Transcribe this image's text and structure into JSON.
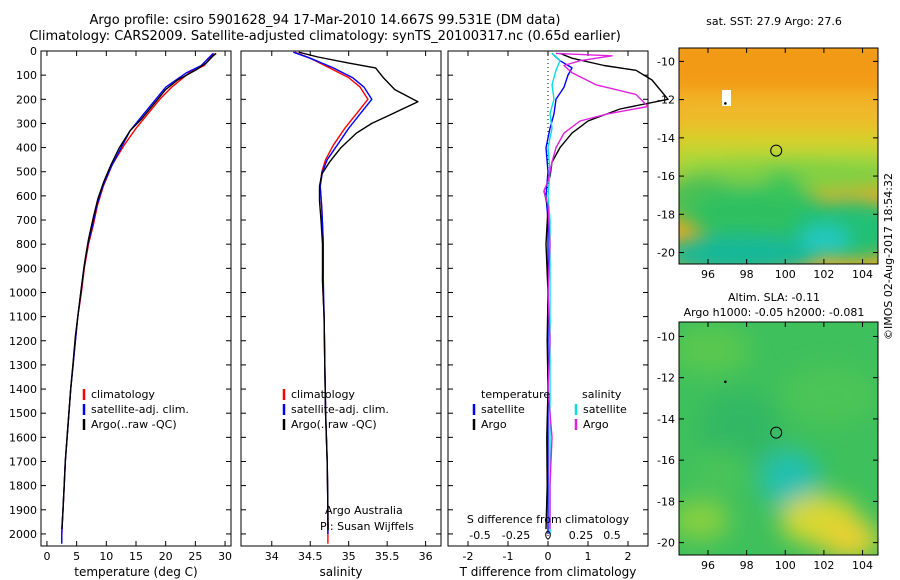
{
  "header": {
    "title_line1": "Argo profile: csiro 5901628_94 17-Mar-2010 14.667S 99.531E (DM data)",
    "title_line2": "Climatology: CARS2009. Satellite-adjusted climatology: synTS_20100317.nc (0.65d earlier)"
  },
  "colors": {
    "climatology": "#ff0000",
    "satellite": "#0000ff",
    "argo": "#000000",
    "t_satellite": "#0000ff",
    "s_satellite": "#00e0e0",
    "s_argo": "#e020e0"
  },
  "chart_data": [
    {
      "type": "line",
      "panel": "temperature",
      "xlabel": "temperature (deg C)",
      "xlim": [
        -1,
        31
      ],
      "ylim": [
        2050,
        0
      ],
      "xticks": [
        0,
        5,
        10,
        15,
        20,
        25,
        30
      ],
      "yticks": [
        0,
        100,
        200,
        300,
        400,
        500,
        600,
        700,
        800,
        900,
        1000,
        1100,
        1200,
        1300,
        1400,
        1500,
        1600,
        1700,
        1800,
        1900,
        2000
      ],
      "legend": [
        "climatology",
        "satellite-adj. clim.",
        "Argo(..raw -QC)"
      ],
      "series": [
        {
          "name": "climatology",
          "color": "#ff0000",
          "points": [
            [
              28.2,
              10
            ],
            [
              27.8,
              20
            ],
            [
              26.5,
              60
            ],
            [
              24.0,
              90
            ],
            [
              21.0,
              150
            ],
            [
              19.0,
              200
            ],
            [
              17.0,
              260
            ],
            [
              15.0,
              320
            ],
            [
              13.0,
              390
            ],
            [
              11.0,
              470
            ],
            [
              9.5,
              560
            ],
            [
              8.5,
              640
            ],
            [
              7.8,
              720
            ],
            [
              7.0,
              800
            ],
            [
              6.3,
              900
            ],
            [
              5.8,
              1000
            ],
            [
              5.2,
              1100
            ],
            [
              4.8,
              1200
            ],
            [
              4.4,
              1300
            ],
            [
              4.0,
              1400
            ],
            [
              3.7,
              1500
            ],
            [
              3.4,
              1600
            ],
            [
              3.1,
              1700
            ],
            [
              2.9,
              1800
            ],
            [
              2.7,
              1900
            ],
            [
              2.5,
              2000
            ],
            [
              2.5,
              2040
            ]
          ]
        },
        {
          "name": "satellite-adj. clim.",
          "color": "#0000ff",
          "points": [
            [
              28.0,
              10
            ],
            [
              27.6,
              20
            ],
            [
              26.0,
              60
            ],
            [
              23.5,
              90
            ],
            [
              20.0,
              150
            ],
            [
              18.0,
              210
            ],
            [
              16.0,
              270
            ],
            [
              14.0,
              330
            ],
            [
              12.5,
              400
            ],
            [
              10.8,
              480
            ],
            [
              9.4,
              560
            ],
            [
              8.4,
              640
            ],
            [
              7.7,
              720
            ],
            [
              6.9,
              800
            ],
            [
              6.2,
              900
            ],
            [
              5.7,
              1000
            ],
            [
              5.2,
              1100
            ],
            [
              4.8,
              1200
            ],
            [
              4.4,
              1300
            ],
            [
              4.0,
              1400
            ],
            [
              3.7,
              1500
            ],
            [
              3.4,
              1600
            ],
            [
              3.1,
              1700
            ],
            [
              2.9,
              1800
            ],
            [
              2.7,
              1900
            ],
            [
              2.5,
              2000
            ],
            [
              2.5,
              2040
            ]
          ]
        },
        {
          "name": "Argo(..raw -QC)",
          "color": "#000000",
          "points": [
            [
              28.5,
              10
            ],
            [
              28.0,
              20
            ],
            [
              26.8,
              50
            ],
            [
              25.0,
              80
            ],
            [
              22.0,
              120
            ],
            [
              20.0,
              160
            ],
            [
              18.0,
              220
            ],
            [
              16.0,
              280
            ],
            [
              14.0,
              330
            ],
            [
              12.2,
              400
            ],
            [
              10.8,
              470
            ],
            [
              9.6,
              540
            ],
            [
              8.6,
              610
            ],
            [
              7.8,
              690
            ],
            [
              7.0,
              780
            ],
            [
              6.4,
              870
            ],
            [
              5.8,
              980
            ],
            [
              5.3,
              1080
            ],
            [
              4.8,
              1180
            ],
            [
              4.4,
              1290
            ],
            [
              4.0,
              1400
            ],
            [
              3.7,
              1500
            ],
            [
              3.4,
              1600
            ],
            [
              3.1,
              1700
            ],
            [
              2.9,
              1800
            ],
            [
              2.7,
              1900
            ],
            [
              2.5,
              1980
            ]
          ]
        }
      ]
    },
    {
      "type": "line",
      "panel": "salinity",
      "xlabel": "salinity",
      "xlim": [
        33.6,
        36.2
      ],
      "ylim": [
        2050,
        0
      ],
      "xticks": [
        34,
        34.5,
        35,
        35.5,
        36
      ],
      "legend": [
        "climatology",
        "satellite-adj. clim.",
        "Argo(..raw -QC)"
      ],
      "annotation_line1": "Argo Australia",
      "annotation_line2": "PI: Susan Wijffels",
      "series": [
        {
          "name": "climatology",
          "color": "#ff0000",
          "points": [
            [
              34.3,
              5
            ],
            [
              34.5,
              30
            ],
            [
              34.75,
              70
            ],
            [
              35.0,
              110
            ],
            [
              35.15,
              150
            ],
            [
              35.25,
              200
            ],
            [
              35.1,
              260
            ],
            [
              34.95,
              320
            ],
            [
              34.8,
              390
            ],
            [
              34.7,
              450
            ],
            [
              34.65,
              500
            ],
            [
              34.63,
              560
            ],
            [
              34.65,
              650
            ],
            [
              34.67,
              800
            ],
            [
              34.66,
              950
            ],
            [
              34.68,
              1100
            ],
            [
              34.69,
              1300
            ],
            [
              34.7,
              1500
            ],
            [
              34.72,
              1700
            ],
            [
              34.73,
              1900
            ],
            [
              34.73,
              2040
            ]
          ]
        },
        {
          "name": "satellite-adj. clim.",
          "color": "#0000ff",
          "points": [
            [
              34.28,
              5
            ],
            [
              34.5,
              30
            ],
            [
              34.8,
              70
            ],
            [
              35.05,
              110
            ],
            [
              35.2,
              150
            ],
            [
              35.3,
              200
            ],
            [
              35.15,
              260
            ],
            [
              35.0,
              320
            ],
            [
              34.85,
              390
            ],
            [
              34.72,
              450
            ],
            [
              34.66,
              500
            ],
            [
              34.63,
              560
            ],
            [
              34.65,
              650
            ],
            [
              34.67,
              800
            ],
            [
              34.67,
              950
            ],
            [
              34.68,
              1100
            ],
            [
              34.69,
              1300
            ],
            [
              34.7,
              1500
            ],
            [
              34.72,
              1700
            ],
            [
              34.73,
              1900
            ],
            [
              34.73,
              2000
            ]
          ]
        },
        {
          "name": "Argo(..raw -QC)",
          "color": "#000000",
          "points": [
            [
              34.35,
              5
            ],
            [
              34.6,
              25
            ],
            [
              35.0,
              50
            ],
            [
              35.35,
              70
            ],
            [
              35.45,
              110
            ],
            [
              35.6,
              160
            ],
            [
              35.9,
              210
            ],
            [
              35.7,
              240
            ],
            [
              35.5,
              270
            ],
            [
              35.3,
              300
            ],
            [
              35.1,
              340
            ],
            [
              34.9,
              400
            ],
            [
              34.75,
              460
            ],
            [
              34.65,
              510
            ],
            [
              34.62,
              560
            ],
            [
              34.62,
              620
            ],
            [
              34.64,
              700
            ],
            [
              34.66,
              800
            ],
            [
              34.66,
              950
            ],
            [
              34.68,
              1100
            ],
            [
              34.69,
              1300
            ],
            [
              34.7,
              1500
            ],
            [
              34.72,
              1700
            ],
            [
              34.73,
              1900
            ],
            [
              34.73,
              1980
            ]
          ]
        }
      ]
    },
    {
      "type": "line",
      "panel": "difference",
      "xlabel": "T difference from climatology",
      "top_axis_label": "S difference from climatology",
      "xlim": [
        -2.5,
        2.5
      ],
      "ylim": [
        2050,
        0
      ],
      "xticks": [
        -2,
        -1,
        0,
        1,
        2
      ],
      "top_ticks": [
        "-0.5",
        "-0.25",
        "0",
        "0.25",
        "0.5"
      ],
      "legend_headers": [
        "temperature",
        "salinity"
      ],
      "legend": [
        "satellite",
        "Argo",
        "satellite",
        "Argo"
      ],
      "series": [
        {
          "name": "temperature satellite",
          "color": "#0000ff",
          "points": [
            [
              0.1,
              10
            ],
            [
              0.3,
              40
            ],
            [
              0.6,
              70
            ],
            [
              0.5,
              100
            ],
            [
              0.4,
              150
            ],
            [
              0.2,
              200
            ],
            [
              0.15,
              260
            ],
            [
              0.05,
              320
            ],
            [
              -0.05,
              400
            ],
            [
              0.0,
              500
            ],
            [
              -0.05,
              600
            ],
            [
              0.0,
              700
            ],
            [
              0.0,
              900
            ],
            [
              0.0,
              1200
            ],
            [
              0.0,
              1500
            ],
            [
              0.0,
              1800
            ],
            [
              0.0,
              2000
            ]
          ]
        },
        {
          "name": "temperature Argo",
          "color": "#000000",
          "points": [
            [
              0.3,
              10
            ],
            [
              0.6,
              30
            ],
            [
              1.4,
              60
            ],
            [
              2.2,
              80
            ],
            [
              2.6,
              120
            ],
            [
              3.0,
              200
            ],
            [
              1.8,
              240
            ],
            [
              1.0,
              290
            ],
            [
              0.6,
              340
            ],
            [
              0.3,
              400
            ],
            [
              0.1,
              460
            ],
            [
              0.05,
              520
            ],
            [
              -0.1,
              580
            ],
            [
              0.0,
              650
            ],
            [
              -0.05,
              800
            ],
            [
              0.0,
              1000
            ],
            [
              -0.02,
              1200
            ],
            [
              0.0,
              1400
            ],
            [
              -0.03,
              1600
            ],
            [
              -0.02,
              1800
            ],
            [
              -0.05,
              1980
            ]
          ]
        },
        {
          "name": "salinity satellite",
          "color": "#00e0e0",
          "points": [
            [
              0.1,
              10
            ],
            [
              0.3,
              40
            ],
            [
              0.2,
              80
            ],
            [
              0.1,
              140
            ],
            [
              0.15,
              200
            ],
            [
              0.05,
              260
            ],
            [
              0.1,
              320
            ],
            [
              0.0,
              400
            ],
            [
              0.05,
              500
            ],
            [
              0.0,
              600
            ],
            [
              0.05,
              700
            ],
            [
              0.05,
              900
            ],
            [
              0.05,
              1200
            ],
            [
              0.05,
              1500
            ],
            [
              0.05,
              1800
            ],
            [
              0.05,
              2000
            ]
          ]
        },
        {
          "name": "salinity Argo",
          "color": "#e020e0",
          "points": [
            [
              0.2,
              10
            ],
            [
              1.6,
              20
            ],
            [
              0.8,
              40
            ],
            [
              0.4,
              60
            ],
            [
              0.6,
              90
            ],
            [
              1.2,
              140
            ],
            [
              2.2,
              180
            ],
            [
              2.5,
              230
            ],
            [
              1.5,
              260
            ],
            [
              0.8,
              290
            ],
            [
              0.4,
              340
            ],
            [
              0.2,
              400
            ],
            [
              0.1,
              460
            ],
            [
              0.0,
              540
            ],
            [
              -0.1,
              580
            ],
            [
              0.0,
              640
            ],
            [
              0.05,
              800
            ],
            [
              0.0,
              1000
            ],
            [
              0.05,
              1200
            ],
            [
              0.0,
              1400
            ],
            [
              0.1,
              1600
            ],
            [
              0.05,
              1800
            ],
            [
              0.05,
              1980
            ]
          ]
        }
      ]
    },
    {
      "type": "heatmap",
      "panel": "sst_map",
      "title": "sat. SST: 27.9  Argo: 27.6",
      "xlim": [
        94.5,
        104.8
      ],
      "ylim": [
        -20.6,
        -9.3
      ],
      "xticks": [
        96,
        98,
        100,
        102,
        104
      ],
      "yticks": [
        -10,
        -12,
        -14,
        -16,
        -18,
        -20
      ],
      "profile_location": [
        99.531,
        -14.667
      ]
    },
    {
      "type": "heatmap",
      "panel": "sla_map",
      "title_line1": "Altim. SLA: -0.11",
      "title_line2": "Argo h1000: -0.05  h2000: -0.081",
      "xlim": [
        94.5,
        104.8
      ],
      "ylim": [
        -20.6,
        -9.3
      ],
      "xticks": [
        96,
        98,
        100,
        102,
        104
      ],
      "yticks": [
        -10,
        -12,
        -14,
        -16,
        -18,
        -20
      ],
      "profile_location": [
        99.531,
        -14.667
      ]
    }
  ],
  "stamp": "©IMOS 02-Aug-2017 18:54:32"
}
